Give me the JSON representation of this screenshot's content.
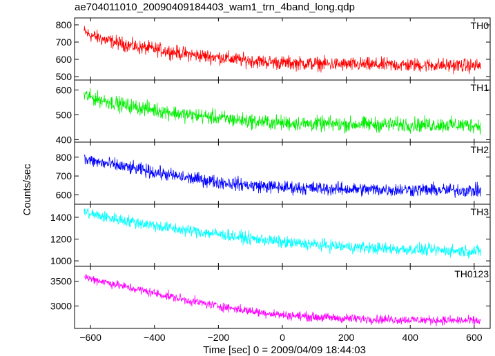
{
  "chart_data": {
    "type": "line",
    "title": "ae704011010_20090409184403_wam1_trn_4band_long.qdp",
    "xlabel": "Time [sec] 0 = 2009/04/09 18:44:03",
    "ylabel": "Counts/sec",
    "xlim": [
      -650,
      650
    ],
    "xticks": [
      -600,
      -400,
      -200,
      0,
      200,
      400,
      600
    ],
    "grid": false,
    "panels": [
      {
        "name": "TH0",
        "color": "#ff0000",
        "ylim": [
          480,
          840
        ],
        "yticks": [
          500,
          600,
          700,
          800
        ],
        "x": [
          -620,
          -600,
          -550,
          -500,
          -450,
          -400,
          -350,
          -300,
          -250,
          -200,
          -150,
          -100,
          -50,
          0,
          50,
          100,
          150,
          200,
          300,
          400,
          500,
          600,
          620
        ],
        "y": [
          760,
          740,
          710,
          690,
          670,
          660,
          645,
          630,
          620,
          612,
          600,
          592,
          585,
          580,
          577,
          575,
          572,
          570,
          568,
          567,
          566,
          563,
          562
        ],
        "noise": 40
      },
      {
        "name": "TH1",
        "color": "#00ee00",
        "ylim": [
          390,
          640
        ],
        "yticks": [
          400,
          500,
          600
        ],
        "x": [
          -620,
          -600,
          -550,
          -500,
          -450,
          -400,
          -350,
          -300,
          -250,
          -200,
          -150,
          -100,
          -50,
          0,
          50,
          100,
          150,
          200,
          300,
          400,
          500,
          600,
          620
        ],
        "y": [
          580,
          570,
          555,
          540,
          530,
          520,
          510,
          500,
          495,
          488,
          480,
          475,
          470,
          467,
          465,
          463,
          462,
          462,
          461,
          460,
          460,
          458,
          457
        ],
        "noise": 30
      },
      {
        "name": "TH2",
        "color": "#0000ff",
        "ylim": [
          550,
          880
        ],
        "yticks": [
          600,
          700,
          800
        ],
        "x": [
          -620,
          -600,
          -550,
          -500,
          -450,
          -400,
          -350,
          -300,
          -250,
          -200,
          -150,
          -100,
          -50,
          0,
          50,
          100,
          150,
          200,
          300,
          400,
          500,
          600,
          620
        ],
        "y": [
          790,
          780,
          765,
          750,
          735,
          720,
          705,
          690,
          680,
          668,
          660,
          650,
          645,
          640,
          637,
          635,
          632,
          630,
          628,
          627,
          625,
          623,
          622
        ],
        "noise": 35
      },
      {
        "name": "TH3",
        "color": "#00ffff",
        "ylim": [
          950,
          1520
        ],
        "yticks": [
          1000,
          1200,
          1400
        ],
        "x": [
          -620,
          -600,
          -550,
          -500,
          -450,
          -400,
          -350,
          -300,
          -250,
          -200,
          -150,
          -100,
          -50,
          0,
          50,
          100,
          150,
          200,
          300,
          400,
          500,
          600,
          620
        ],
        "y": [
          1450,
          1430,
          1400,
          1375,
          1350,
          1325,
          1300,
          1280,
          1265,
          1245,
          1225,
          1205,
          1190,
          1170,
          1160,
          1150,
          1140,
          1130,
          1115,
          1105,
          1095,
          1090,
          1088
        ],
        "noise": 55
      },
      {
        "name": "TH0123",
        "color": "#ff00ff",
        "ylim": [
          2550,
          3800
        ],
        "yticks": [
          3000,
          3500
        ],
        "x": [
          -620,
          -600,
          -550,
          -500,
          -450,
          -400,
          -350,
          -300,
          -250,
          -200,
          -150,
          -100,
          -50,
          0,
          50,
          100,
          150,
          200,
          300,
          400,
          500,
          600,
          620
        ],
        "y": [
          3600,
          3550,
          3480,
          3400,
          3330,
          3260,
          3190,
          3120,
          3060,
          3000,
          2950,
          2900,
          2860,
          2820,
          2800,
          2780,
          2765,
          2750,
          2735,
          2722,
          2712,
          2702,
          2700
        ],
        "noise": 90
      }
    ]
  }
}
